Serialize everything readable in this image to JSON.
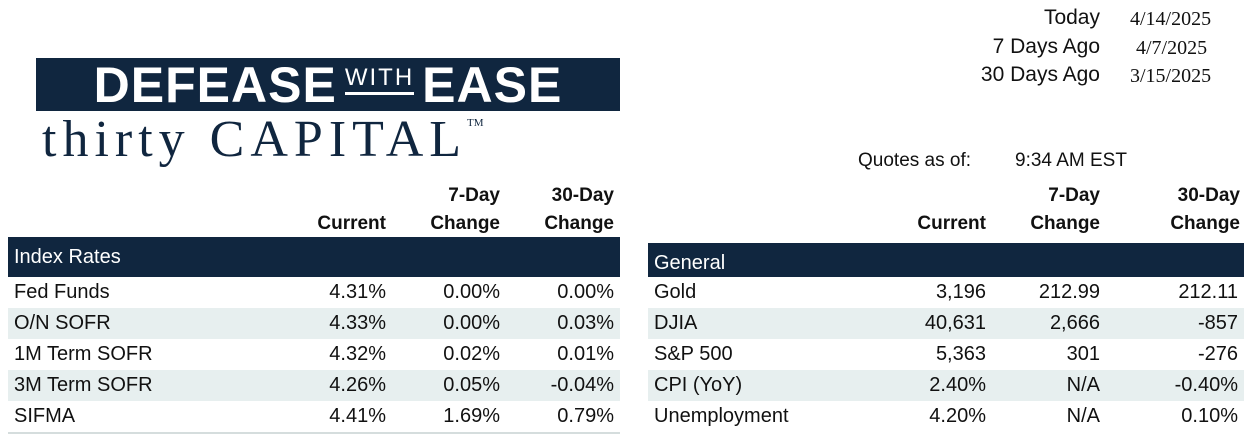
{
  "logo": {
    "top_left": "DEFEASE",
    "top_mid": "WITH",
    "top_right": "EASE",
    "bottom": "thirty CAPITAL",
    "tm": "TM"
  },
  "dates": [
    {
      "label": "Today",
      "value": "4/14/2025"
    },
    {
      "label": "7 Days Ago",
      "value": "4/7/2025"
    },
    {
      "label": "30 Days Ago",
      "value": "3/15/2025"
    }
  ],
  "quotes": {
    "label": "Quotes as of:",
    "value": "9:34 AM EST"
  },
  "column_headers": {
    "current": "Current",
    "seven_day_top": "7-Day",
    "seven_day_bottom": "Change",
    "thirty_day_top": "30-Day",
    "thirty_day_bottom": "Change"
  },
  "index_rates": {
    "title": "Index Rates",
    "rows": [
      {
        "name": "Fed Funds",
        "current": "4.31%",
        "d7": "0.00%",
        "d30": "0.00%"
      },
      {
        "name": "O/N SOFR",
        "current": "4.33%",
        "d7": "0.00%",
        "d30": "0.03%"
      },
      {
        "name": "1M Term SOFR",
        "current": "4.32%",
        "d7": "0.02%",
        "d30": "0.01%"
      },
      {
        "name": "3M Term SOFR",
        "current": "4.26%",
        "d7": "0.05%",
        "d30": "-0.04%"
      },
      {
        "name": "SIFMA",
        "current": "4.41%",
        "d7": "1.69%",
        "d30": "0.79%"
      }
    ]
  },
  "general": {
    "title": "General",
    "rows": [
      {
        "name": "Gold",
        "current": "3,196",
        "d7": "212.99",
        "d30": "212.11"
      },
      {
        "name": "DJIA",
        "current": "40,631",
        "d7": "2,666",
        "d30": "-857"
      },
      {
        "name": "S&P 500",
        "current": "5,363",
        "d7": "301",
        "d30": "-276"
      },
      {
        "name": "CPI (YoY)",
        "current": "2.40%",
        "d7": "N/A",
        "d30": "-0.40%"
      },
      {
        "name": "Unemployment",
        "current": "4.20%",
        "d7": "N/A",
        "d30": "0.10%"
      }
    ]
  },
  "colors": {
    "navy": "#10263f",
    "stripe": "#e7efef"
  }
}
